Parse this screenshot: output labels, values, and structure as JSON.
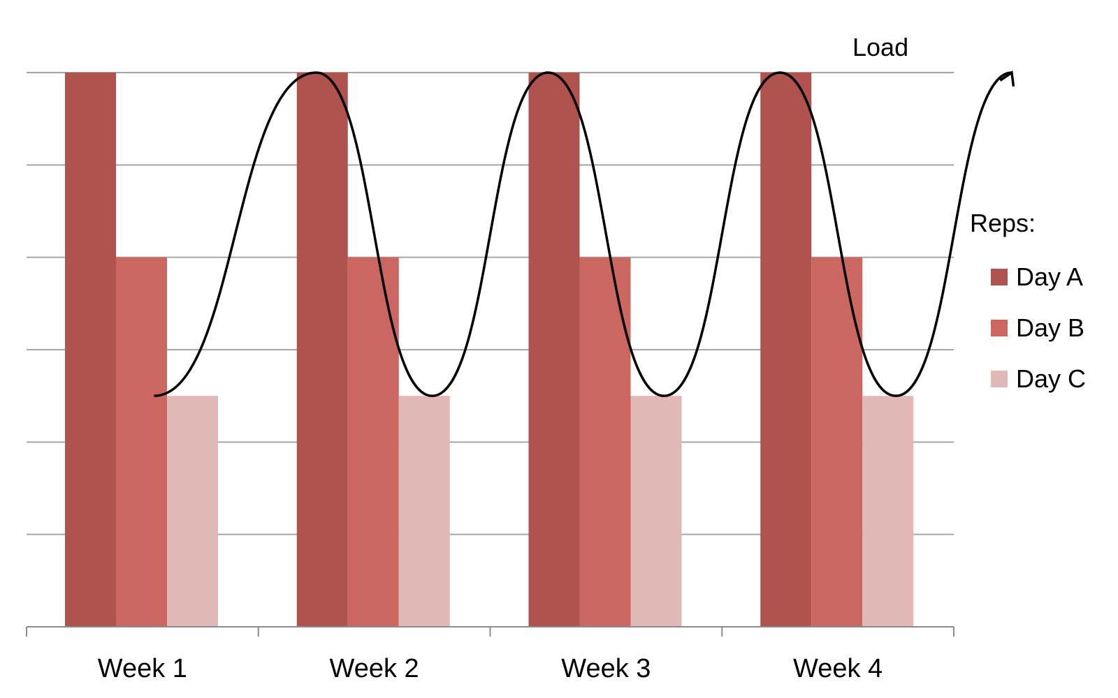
{
  "chart_data": {
    "type": "bar",
    "categories": [
      "Week 1",
      "Week 2",
      "Week 3",
      "Week 4"
    ],
    "series": [
      {
        "name": "Day A",
        "color": "#b0534e",
        "values": [
          6,
          6,
          6,
          6
        ]
      },
      {
        "name": "Day B",
        "color": "#cc6661",
        "values": [
          4,
          4,
          4,
          4
        ]
      },
      {
        "name": "Day C",
        "color": "#e0b8b6",
        "values": [
          2.5,
          2.5,
          2.5,
          2.5
        ]
      }
    ],
    "ylim": [
      0,
      6
    ],
    "grid": true,
    "y_tick_labels_shown": false,
    "legend": {
      "title": "Reps:",
      "placement": "right"
    },
    "overlay": {
      "label": "Load",
      "type": "wave-with-arrow",
      "color": "#000000",
      "points": [
        {
          "x": 0.55,
          "y": 2.5
        },
        {
          "x": 1.25,
          "y": 6.0
        },
        {
          "x": 1.75,
          "y": 2.5
        },
        {
          "x": 2.25,
          "y": 6.0
        },
        {
          "x": 2.75,
          "y": 2.5
        },
        {
          "x": 3.25,
          "y": 6.0
        },
        {
          "x": 3.75,
          "y": 2.5
        },
        {
          "x": 4.25,
          "y": 6.0
        }
      ]
    }
  }
}
